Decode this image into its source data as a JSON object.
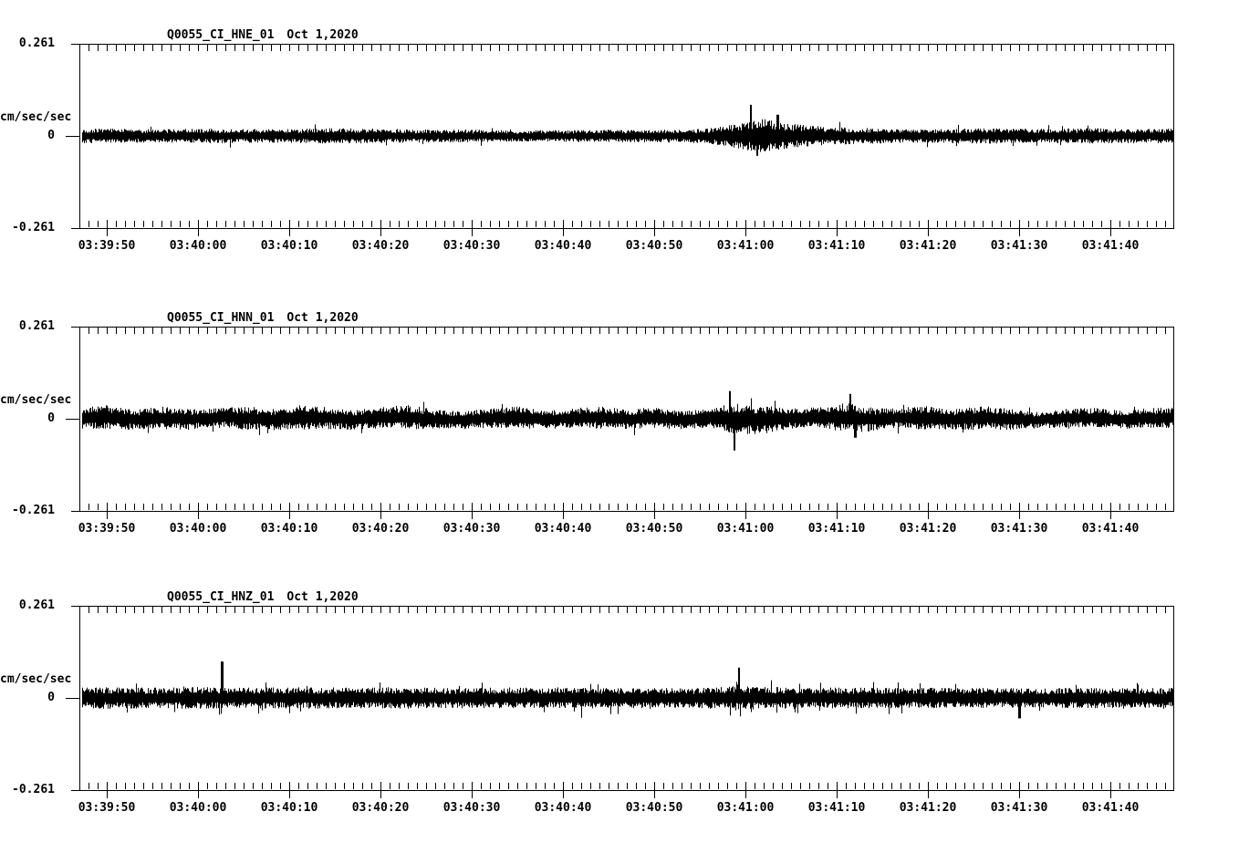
{
  "page": {
    "background": "#ffffff",
    "ink": "#000000"
  },
  "chart_data": [
    {
      "type": "line",
      "chart_kind": "seismogram",
      "station_channel": "Q0055_CI_HNE_01",
      "date_label": "Oct 1,2020",
      "ylabel": "cm/sec/sec",
      "ytick_labels": [
        "0.261",
        "0",
        "-0.261"
      ],
      "ylim": [
        -0.261,
        0.261
      ],
      "duration_seconds": 120,
      "x_start_time": "03:39:47",
      "x_end_time": "03:41:47",
      "xtick_labels": [
        "03:39:50",
        "03:40:00",
        "03:40:10",
        "03:40:20",
        "03:40:30",
        "03:40:40",
        "03:40:50",
        "03:41:00",
        "03:41:10",
        "03:41:20",
        "03:41:30",
        "03:41:40"
      ],
      "xtick_seconds": [
        3,
        13,
        23,
        33,
        43,
        53,
        63,
        73,
        83,
        93,
        103,
        113
      ],
      "minor_tick_interval_seconds": 1,
      "grid": false,
      "series": {
        "name": "HNE",
        "units": "cm/sec/sec",
        "seed": 101,
        "envelope_dt_seconds": 3,
        "envelope": [
          0.021,
          0.021,
          0.02,
          0.019,
          0.02,
          0.021,
          0.02,
          0.019,
          0.02,
          0.022,
          0.022,
          0.02,
          0.019,
          0.018,
          0.018,
          0.017,
          0.016,
          0.016,
          0.017,
          0.017,
          0.018,
          0.018,
          0.019,
          0.022,
          0.035,
          0.048,
          0.034,
          0.027,
          0.024,
          0.022,
          0.02,
          0.019,
          0.021,
          0.022,
          0.021,
          0.02,
          0.021,
          0.022,
          0.021,
          0.02,
          0.021
        ],
        "offset": null,
        "offset_dt_seconds": 3,
        "spike_prob": 0.03,
        "spike_gain": 1.7,
        "spikes": [
          {
            "t": 73.6,
            "amp": 0.088,
            "dir": "up"
          },
          {
            "t": 74.2,
            "amp": 0.056,
            "dir": "down"
          },
          {
            "t": 76.5,
            "amp": 0.06,
            "dir": "up"
          }
        ]
      }
    },
    {
      "type": "line",
      "chart_kind": "seismogram",
      "station_channel": "Q0055_CI_HNN_01",
      "date_label": "Oct 1,2020",
      "ylabel": "cm/sec/sec",
      "ytick_labels": [
        "0.261",
        "0",
        "-0.261"
      ],
      "ylim": [
        -0.261,
        0.261
      ],
      "duration_seconds": 120,
      "x_start_time": "03:39:47",
      "x_end_time": "03:41:47",
      "xtick_labels": [
        "03:39:50",
        "03:40:00",
        "03:40:10",
        "03:40:20",
        "03:40:30",
        "03:40:40",
        "03:40:50",
        "03:41:00",
        "03:41:10",
        "03:41:20",
        "03:41:30",
        "03:41:40"
      ],
      "xtick_seconds": [
        3,
        13,
        23,
        33,
        43,
        53,
        63,
        73,
        83,
        93,
        103,
        113
      ],
      "minor_tick_interval_seconds": 1,
      "grid": false,
      "series": {
        "name": "HNN",
        "units": "cm/sec/sec",
        "seed": 202,
        "envelope_dt_seconds": 3,
        "envelope": [
          0.03,
          0.034,
          0.028,
          0.032,
          0.03,
          0.026,
          0.033,
          0.03,
          0.035,
          0.031,
          0.028,
          0.03,
          0.034,
          0.028,
          0.025,
          0.028,
          0.031,
          0.026,
          0.028,
          0.032,
          0.028,
          0.031,
          0.026,
          0.03,
          0.044,
          0.04,
          0.03,
          0.028,
          0.042,
          0.033,
          0.028,
          0.035,
          0.03,
          0.034,
          0.03,
          0.024,
          0.026,
          0.028,
          0.026,
          0.028,
          0.03
        ],
        "offset": [
          0.002,
          0.004,
          -0.003,
          0.003,
          -0.002,
          0.004,
          0.002,
          -0.003,
          0.004,
          0.002,
          -0.004,
          0.003,
          0.005,
          -0.002,
          -0.004,
          0.002,
          0.004,
          -0.003,
          0.002,
          0.004,
          -0.002,
          0.003,
          -0.004,
          0.002,
          0.0,
          -0.003,
          0.002,
          0.004,
          0.003,
          -0.002,
          0.004,
          0.002,
          -0.003,
          0.003,
          -0.002,
          -0.004,
          0.002,
          0.003,
          -0.002,
          0.002,
          0.003
        ],
        "offset_dt_seconds": 3,
        "spike_prob": 0.03,
        "spike_gain": 1.6,
        "spikes": [
          {
            "t": 71.2,
            "amp": 0.078,
            "dir": "up"
          },
          {
            "t": 71.7,
            "amp": 0.09,
            "dir": "down"
          },
          {
            "t": 84.4,
            "amp": 0.068,
            "dir": "up"
          },
          {
            "t": 85.0,
            "amp": 0.055,
            "dir": "down"
          }
        ]
      }
    },
    {
      "type": "line",
      "chart_kind": "seismogram",
      "station_channel": "Q0055_CI_HNZ_01",
      "date_label": "Oct 1,2020",
      "ylabel": "cm/sec/sec",
      "ytick_labels": [
        "0.261",
        "0",
        "-0.261"
      ],
      "ylim": [
        -0.261,
        0.261
      ],
      "duration_seconds": 120,
      "x_start_time": "03:39:47",
      "x_end_time": "03:41:47",
      "xtick_labels": [
        "03:39:50",
        "03:40:00",
        "03:40:10",
        "03:40:20",
        "03:40:30",
        "03:40:40",
        "03:40:50",
        "03:41:00",
        "03:41:10",
        "03:41:20",
        "03:41:30",
        "03:41:40"
      ],
      "xtick_seconds": [
        3,
        13,
        23,
        33,
        43,
        53,
        63,
        73,
        83,
        93,
        103,
        113
      ],
      "minor_tick_interval_seconds": 1,
      "grid": false,
      "series": {
        "name": "HNZ",
        "units": "cm/sec/sec",
        "seed": 303,
        "envelope_dt_seconds": 3,
        "envelope": [
          0.03,
          0.031,
          0.03,
          0.029,
          0.031,
          0.03,
          0.029,
          0.03,
          0.031,
          0.03,
          0.029,
          0.03,
          0.031,
          0.029,
          0.028,
          0.029,
          0.03,
          0.028,
          0.029,
          0.03,
          0.029,
          0.03,
          0.028,
          0.029,
          0.034,
          0.032,
          0.03,
          0.029,
          0.03,
          0.029,
          0.028,
          0.029,
          0.028,
          0.029,
          0.028,
          0.027,
          0.028,
          0.029,
          0.028,
          0.028,
          0.029
        ],
        "offset": null,
        "offset_dt_seconds": 3,
        "spike_prob": 0.08,
        "spike_gain": 1.6,
        "spikes": [
          {
            "t": 15.6,
            "amp": 0.103,
            "dir": "up"
          },
          {
            "t": 72.2,
            "amp": 0.086,
            "dir": "up"
          },
          {
            "t": 55.0,
            "amp": 0.056,
            "dir": "down"
          },
          {
            "t": 103.0,
            "amp": 0.058,
            "dir": "down"
          }
        ]
      }
    }
  ]
}
